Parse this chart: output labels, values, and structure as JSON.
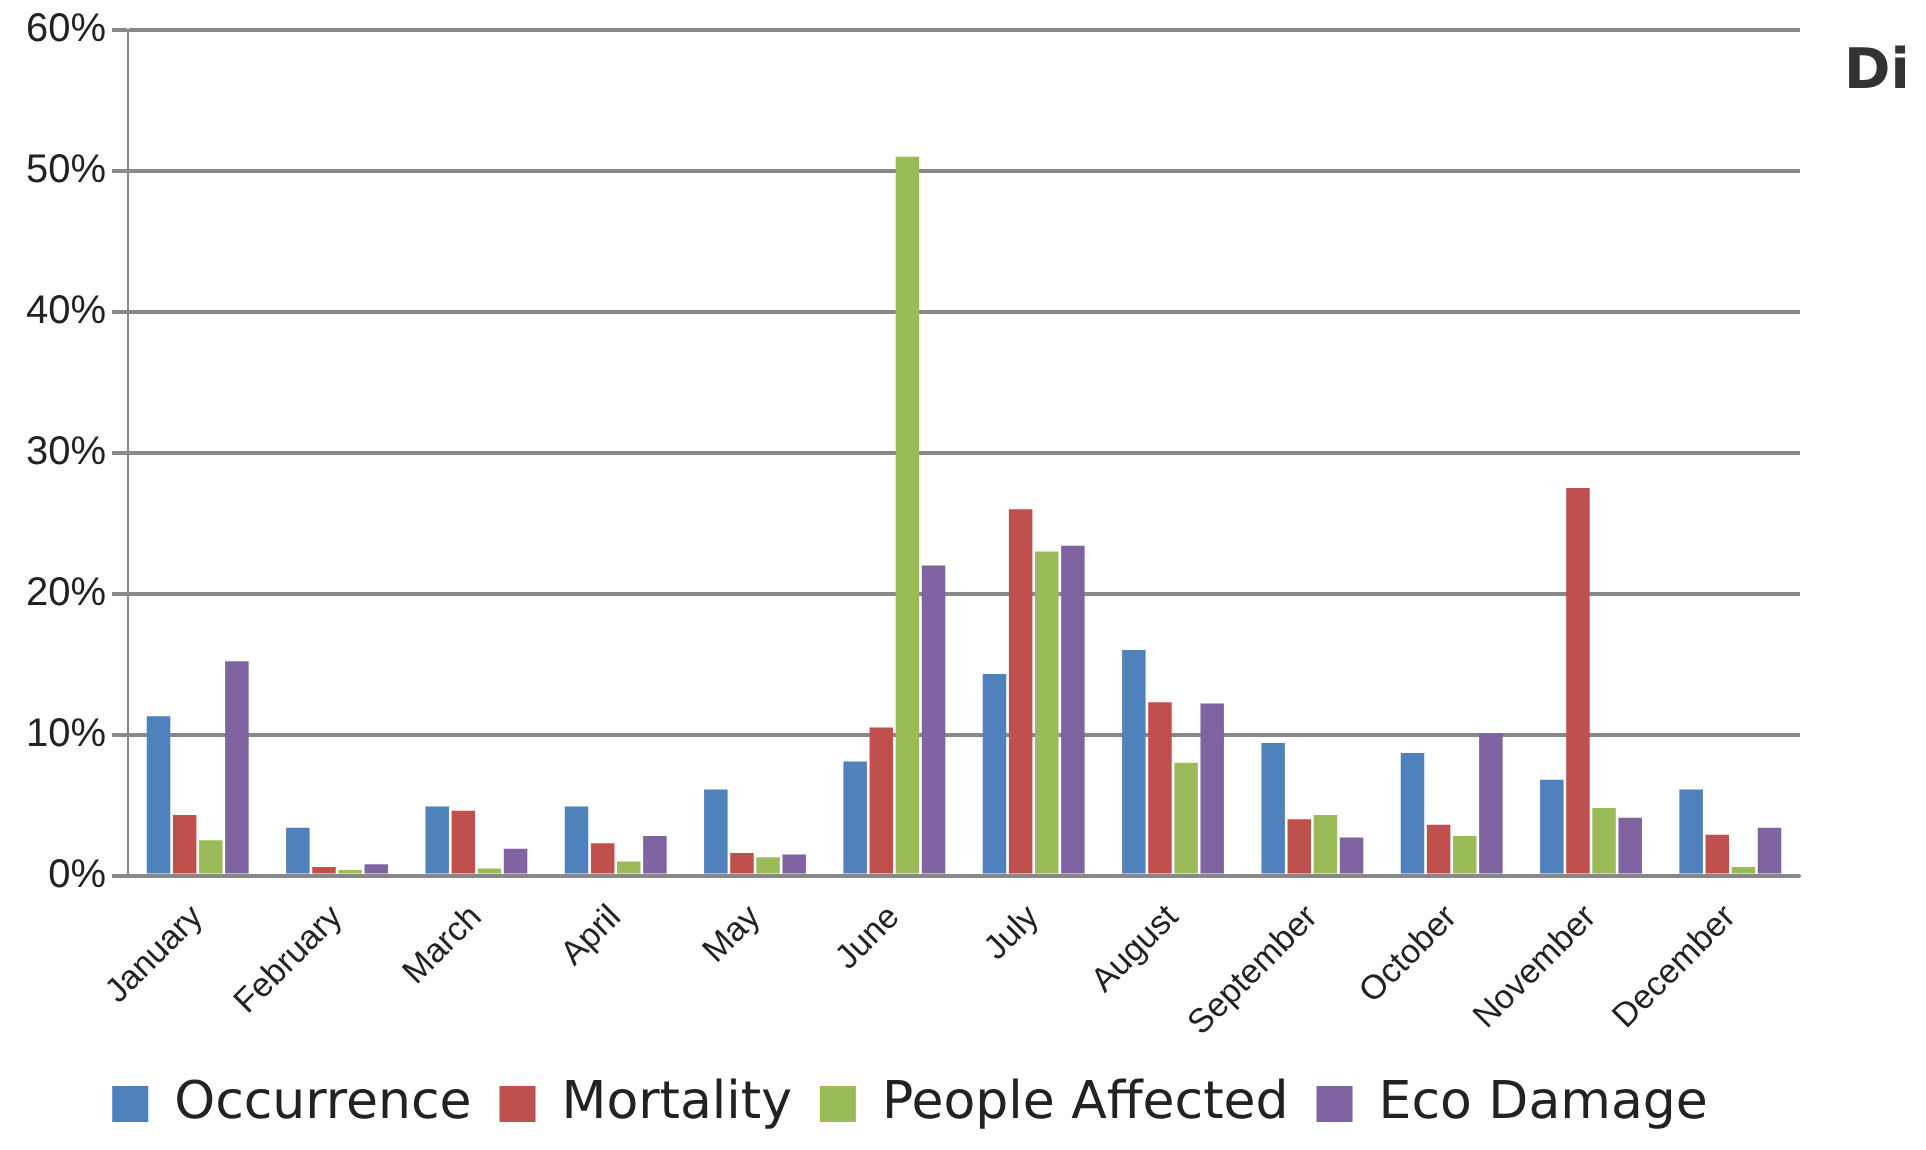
{
  "chart_data": {
    "type": "bar",
    "categories": [
      "January",
      "February",
      "March",
      "April",
      "May",
      "June",
      "July",
      "August",
      "September",
      "October",
      "November",
      "December"
    ],
    "series": [
      {
        "name": "Occurrence",
        "color": "#4f81bd",
        "values": [
          11.3,
          3.4,
          4.9,
          4.9,
          6.1,
          8.1,
          14.3,
          16,
          9.4,
          8.7,
          6.8,
          6.1
        ]
      },
      {
        "name": "Mortality",
        "color": "#c0504d",
        "values": [
          4.3,
          0.6,
          4.6,
          2.3,
          1.6,
          10.5,
          26,
          12.3,
          4,
          3.6,
          27.5,
          2.9
        ]
      },
      {
        "name": "People Affected",
        "color": "#9bbb59",
        "values": [
          2.5,
          0.4,
          0.5,
          1,
          1.3,
          51,
          23,
          8,
          4.3,
          2.8,
          4.8,
          0.6
        ]
      },
      {
        "name": "Eco Damage",
        "color": "#8064a2",
        "values": [
          15.2,
          0.8,
          1.9,
          2.8,
          1.5,
          22,
          23.4,
          12.2,
          2.7,
          10.1,
          4.1,
          3.4
        ]
      }
    ],
    "ylim": [
      0,
      60
    ],
    "yticks": [
      {
        "value": 0,
        "label": "0%"
      },
      {
        "value": 10,
        "label": "10%"
      },
      {
        "value": 20,
        "label": "20%"
      },
      {
        "value": 30,
        "label": "30%"
      },
      {
        "value": 40,
        "label": "40%"
      },
      {
        "value": 50,
        "label": "50%"
      },
      {
        "value": 60,
        "label": "60%"
      }
    ],
    "grid": "y",
    "legend": "bottom",
    "annotations": [
      "Di"
    ]
  }
}
